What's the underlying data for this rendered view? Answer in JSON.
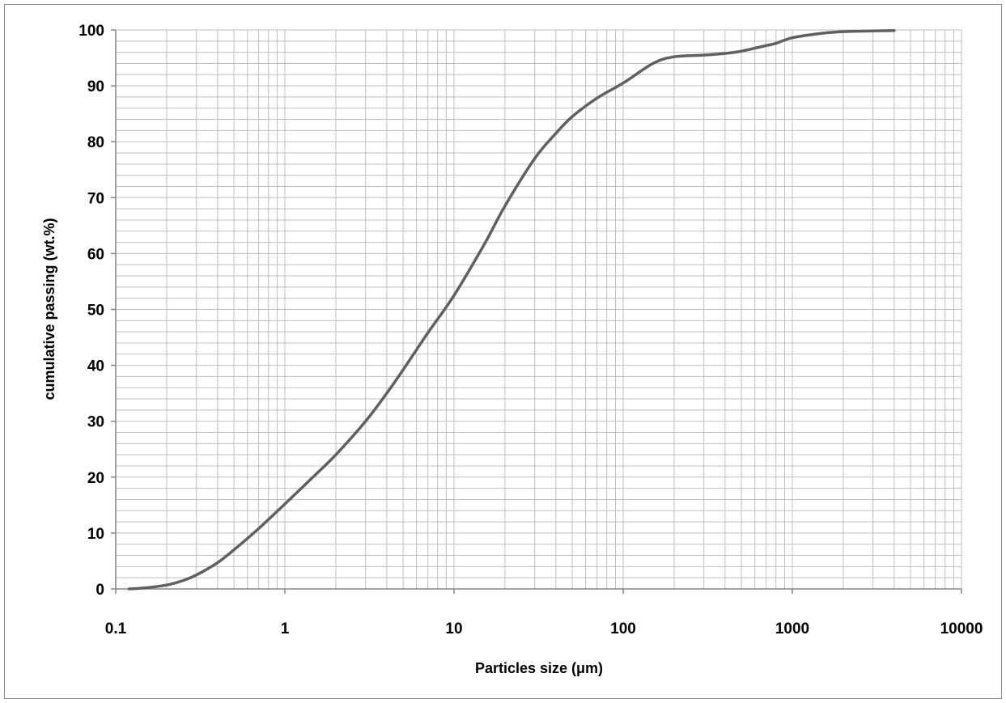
{
  "chart_data": {
    "type": "line",
    "title": "",
    "xlabel": "Particles size (μm)",
    "ylabel": "cumulative passing (wt.%)",
    "x_scale": "log",
    "xlim": [
      0.1,
      10000
    ],
    "ylim": [
      0,
      100
    ],
    "x_ticks": [
      0.1,
      1,
      10,
      100,
      1000,
      10000
    ],
    "x_tick_labels": [
      "0.1",
      "1",
      "10",
      "100",
      "1000",
      "10000"
    ],
    "y_ticks": [
      0,
      10,
      20,
      30,
      40,
      50,
      60,
      70,
      80,
      90,
      100
    ],
    "y_tick_labels": [
      "0",
      "10",
      "20",
      "30",
      "40",
      "50",
      "60",
      "70",
      "80",
      "90",
      "100"
    ],
    "grid": true,
    "legend": "none",
    "series": [
      {
        "color": "#606060",
        "x": [
          0.12,
          0.15,
          0.2,
          0.25,
          0.3,
          0.4,
          0.5,
          0.7,
          1,
          1.5,
          2,
          3,
          4,
          5,
          7,
          10,
          15,
          20,
          30,
          40,
          50,
          70,
          100,
          150,
          200,
          300,
          400,
          500,
          700,
          800,
          1000,
          1500,
          2000,
          4000
        ],
        "y": [
          0,
          0.2,
          0.7,
          1.5,
          2.5,
          4.7,
          7,
          10.8,
          15.2,
          20.3,
          24,
          30,
          35,
          39.2,
          45.8,
          52.5,
          61.5,
          68.5,
          77,
          81.5,
          84.5,
          87.8,
          90.5,
          94,
          95.2,
          95.5,
          95.8,
          96.2,
          97.2,
          97.6,
          98.6,
          99.4,
          99.7,
          99.9
        ]
      }
    ]
  },
  "colors": {
    "line": "#606060",
    "grid": "#bfbfbf",
    "axis": "#868686",
    "frame": "#8c8c8c"
  }
}
